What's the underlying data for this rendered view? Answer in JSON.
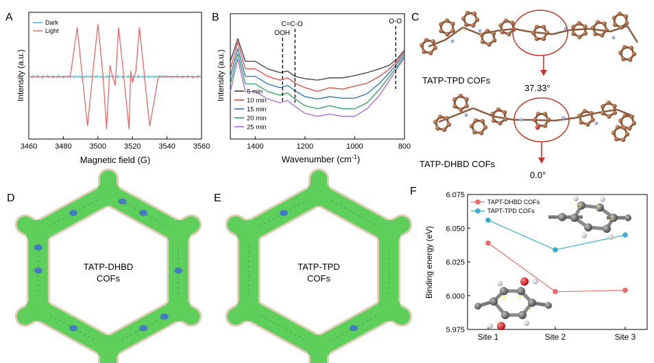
{
  "panel_letters": {
    "a": "A",
    "b": "B",
    "c": "C",
    "d": "D",
    "e": "E",
    "f": "F"
  },
  "colors": {
    "dark_epr": "#3fb0c8",
    "light_epr": "#e26a6a",
    "ir_5min": "#3c3c3c",
    "ir_10min": "#e0473f",
    "ir_15min": "#1f6fb2",
    "ir_20min": "#2e9a58",
    "ir_25min": "#a566d6",
    "dhbd": "#e86b6b",
    "tpd": "#3aaccc",
    "struct_ring": "#c0392b",
    "carbon_brown": "#9b5a3a",
    "surface_green": "#5fcf5b"
  },
  "chart_data": [
    {
      "type": "line",
      "panel": "A",
      "xlabel": "Magnetic field (G)",
      "ylabel": "Intensity (a.u.)",
      "xlim": [
        3460,
        3560
      ],
      "xticks": [
        3460,
        3480,
        3500,
        3520,
        3540,
        3560
      ],
      "legend_position": "top-left",
      "series": [
        {
          "name": "Dark",
          "x": [
            3460,
            3560
          ],
          "y": [
            0,
            0
          ]
        },
        {
          "name": "Light",
          "x": [
            3460,
            3484,
            3488,
            3491,
            3494,
            3497,
            3500,
            3503,
            3505,
            3507,
            3508.5,
            3510,
            3512,
            3515,
            3518,
            3519,
            3520,
            3522,
            3524,
            3527,
            3530,
            3535,
            3560
          ],
          "y": [
            0,
            0,
            0.85,
            0,
            -0.85,
            0.05,
            0.9,
            0,
            -0.9,
            0.2,
            0,
            -0.15,
            0.85,
            0,
            -0.9,
            0.1,
            -0.1,
            0.1,
            0.85,
            0,
            -0.85,
            0,
            0
          ]
        }
      ]
    },
    {
      "type": "line",
      "panel": "B",
      "xlabel": "Wavenumber (cm⁻¹)",
      "ylabel": "Intensity (a.u.)",
      "xlim": [
        1500,
        800
      ],
      "xticks": [
        1400,
        1200,
        1000,
        800
      ],
      "annotations": [
        {
          "label": "OOH",
          "x": 1290
        },
        {
          "label": "C=C-O",
          "x": 1240
        },
        {
          "label": "O-O",
          "x": 835
        }
      ],
      "legend_position": "bottom-left",
      "series": [
        {
          "name": "5 min",
          "x": [
            1500,
            1470,
            1440,
            1400,
            1350,
            1300,
            1270,
            1240,
            1200,
            1150,
            1100,
            1050,
            1000,
            950,
            900,
            860,
            830,
            800
          ],
          "y": [
            0.55,
            0.85,
            0.55,
            0.55,
            0.45,
            0.4,
            0.42,
            0.35,
            0.32,
            0.3,
            0.33,
            0.33,
            0.36,
            0.4,
            0.45,
            0.5,
            0.58,
            0.7
          ]
        },
        {
          "name": "10 min",
          "x": [
            1500,
            1470,
            1440,
            1400,
            1350,
            1300,
            1270,
            1240,
            1200,
            1150,
            1100,
            1050,
            1000,
            950,
            900,
            860,
            830,
            800
          ],
          "y": [
            0.45,
            0.8,
            0.45,
            0.45,
            0.35,
            0.3,
            0.33,
            0.26,
            0.2,
            0.15,
            0.2,
            0.18,
            0.22,
            0.26,
            0.35,
            0.45,
            0.55,
            0.68
          ]
        },
        {
          "name": "15 min",
          "x": [
            1500,
            1470,
            1440,
            1400,
            1350,
            1300,
            1270,
            1240,
            1200,
            1150,
            1100,
            1050,
            1000,
            950,
            900,
            860,
            830,
            800
          ],
          "y": [
            0.35,
            0.72,
            0.35,
            0.35,
            0.25,
            0.2,
            0.23,
            0.16,
            0.08,
            0.05,
            0.08,
            0.06,
            0.06,
            0.12,
            0.26,
            0.4,
            0.52,
            0.65
          ]
        },
        {
          "name": "20 min",
          "x": [
            1500,
            1470,
            1440,
            1400,
            1350,
            1300,
            1270,
            1240,
            1200,
            1150,
            1100,
            1050,
            1000,
            950,
            900,
            860,
            830,
            800
          ],
          "y": [
            0.25,
            0.65,
            0.25,
            0.25,
            0.15,
            0.1,
            0.13,
            0.05,
            -0.04,
            -0.08,
            -0.04,
            -0.08,
            -0.08,
            0.0,
            0.18,
            0.35,
            0.48,
            0.62
          ]
        },
        {
          "name": "25 min",
          "x": [
            1500,
            1470,
            1440,
            1400,
            1350,
            1300,
            1270,
            1240,
            1200,
            1150,
            1100,
            1050,
            1000,
            950,
            900,
            860,
            830,
            800
          ],
          "y": [
            0.15,
            0.58,
            0.15,
            0.15,
            0.05,
            0.0,
            0.03,
            -0.05,
            -0.14,
            -0.18,
            -0.15,
            -0.18,
            -0.18,
            -0.08,
            0.1,
            0.3,
            0.45,
            0.6
          ]
        }
      ]
    },
    {
      "type": "line",
      "panel": "F",
      "xlabel": "",
      "ylabel": "Binding energy (eV)",
      "categories": [
        "Site 1",
        "Site 2",
        "Site 3"
      ],
      "ylim": [
        5.975,
        6.075
      ],
      "yticks": [
        5.975,
        6.0,
        6.025,
        6.05,
        6.075
      ],
      "legend_position": "top-left",
      "series": [
        {
          "name": "TAPT-DHBD COFs",
          "values": [
            6.039,
            6.003,
            6.004
          ]
        },
        {
          "name": "TAPT-TPD COFs",
          "values": [
            6.056,
            6.034,
            6.045
          ]
        }
      ]
    }
  ],
  "panel_c": {
    "top_label": "TATP-TPD COFs",
    "bottom_label": "TATP-DHBD COFs",
    "angle_top": "37.33°",
    "angle_bottom": "0.0°"
  },
  "panel_d": {
    "label_line1": "TATP-DHBD",
    "label_line2": "COFs"
  },
  "panel_e": {
    "label_line1": "TATP-TPD",
    "label_line2": "COFs"
  },
  "panel_f_insets": {
    "tpd_sites": [
      "1",
      "2",
      "3"
    ],
    "dhbd_sites": [
      "1",
      "2",
      "3"
    ]
  }
}
